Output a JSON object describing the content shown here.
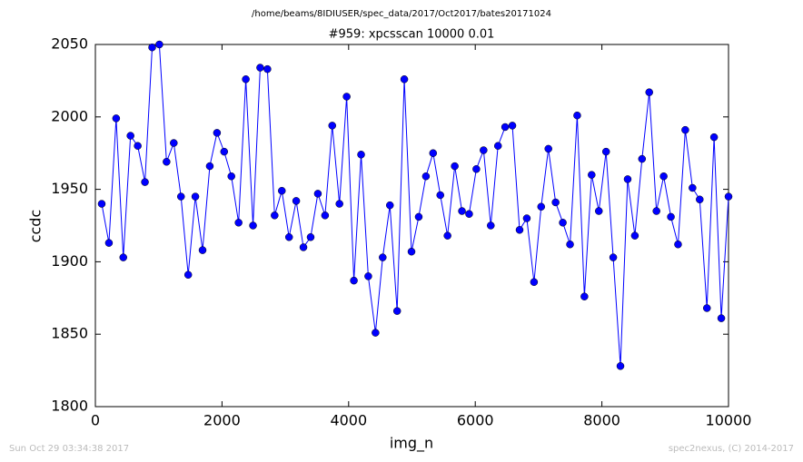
{
  "chart_data": {
    "type": "line",
    "suptitle": "/home/beams/8IDIUSER/spec_data/2017/Oct2017/bates20171024",
    "title": "#959: xpcsscan 10000 0.01",
    "x_label": "img_n",
    "y_label": "ccdc",
    "footer_left": "Sun Oct 29 03:34:38 2017",
    "footer_right": "spec2nexus, (C) 2014-2017",
    "x": [
      100,
      214,
      328,
      441,
      555,
      669,
      783,
      897,
      1010,
      1124,
      1238,
      1352,
      1466,
      1579,
      1693,
      1807,
      1921,
      2034,
      2148,
      2262,
      2376,
      2490,
      2603,
      2717,
      2831,
      2945,
      3059,
      3172,
      3286,
      3400,
      3514,
      3628,
      3741,
      3855,
      3969,
      4083,
      4197,
      4310,
      4424,
      4538,
      4652,
      4766,
      4879,
      4993,
      5107,
      5221,
      5334,
      5448,
      5562,
      5676,
      5790,
      5903,
      6017,
      6131,
      6245,
      6359,
      6472,
      6586,
      6700,
      6814,
      6928,
      7041,
      7155,
      7269,
      7383,
      7497,
      7610,
      7724,
      7838,
      7952,
      8066,
      8179,
      8293,
      8407,
      8521,
      8634,
      8748,
      8862,
      8976,
      9090,
      9203,
      9317,
      9431,
      9545,
      9659,
      9772,
      9886,
      10000
    ],
    "series": [
      {
        "name": "ccdc",
        "color": "#0000ff",
        "values": [
          1940,
          1913,
          1999,
          1903,
          1987,
          1980,
          1955,
          2048,
          2050,
          1969,
          1982,
          1945,
          1891,
          1945,
          1908,
          1966,
          1989,
          1976,
          1959,
          1927,
          2026,
          1925,
          2034,
          2033,
          1932,
          1949,
          1917,
          1942,
          1910,
          1917,
          1947,
          1932,
          1994,
          1940,
          2014,
          1887,
          1974,
          1890,
          1851,
          1903,
          1939,
          1866,
          2026,
          1907,
          1931,
          1959,
          1975,
          1946,
          1918,
          1966,
          1935,
          1933,
          1964,
          1977,
          1925,
          1980,
          1993,
          1994,
          1922,
          1930,
          1886,
          1938,
          1978,
          1941,
          1927,
          1912,
          2001,
          1876,
          1960,
          1935,
          1976,
          1903,
          1828,
          1957,
          1918,
          1971,
          2017,
          1935,
          1959,
          1931,
          1912,
          1991,
          1951,
          1943,
          1868,
          1986,
          1861,
          1945
        ]
      }
    ],
    "xlim": [
      0,
      10000
    ],
    "ylim": [
      1800,
      2050
    ],
    "xticks": [
      0,
      2000,
      4000,
      6000,
      8000,
      10000
    ],
    "yticks": [
      1800,
      1850,
      1900,
      1950,
      2000,
      2050
    ]
  }
}
